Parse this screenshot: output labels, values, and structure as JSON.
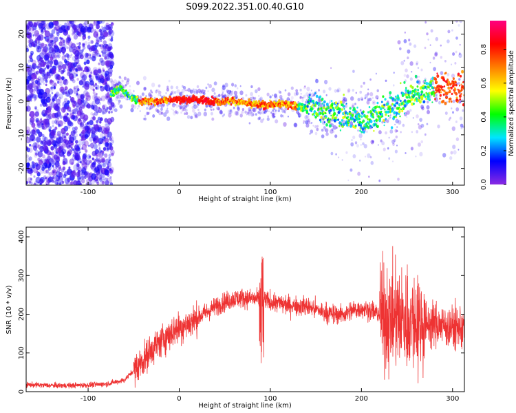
{
  "title": "S099.2022.351.00.40.G10",
  "chart_data": [
    {
      "type": "heatmap",
      "xlabel": "Height of straight line (km)",
      "ylabel": "Frequency (Hz)",
      "xlim": [
        -168,
        313
      ],
      "ylim": [
        -25,
        24
      ],
      "xticks": [
        -100,
        0,
        100,
        200,
        300
      ],
      "yticks": [
        -20,
        -10,
        0,
        10,
        20
      ],
      "colorbar": {
        "label": "Normalized spectral amplitude",
        "range": [
          0,
          0.97
        ],
        "ticks": [
          0.0,
          0.2,
          0.4,
          0.6,
          0.8
        ],
        "colormap": [
          "#8a2be2",
          "#0000ff",
          "#00e5ff",
          "#00ff00",
          "#ffff00",
          "#ff8000",
          "#ff0000",
          "#ff0080"
        ]
      },
      "ridge": {
        "x": [
          -75,
          -65,
          -55,
          -45,
          -30,
          -10,
          0,
          20,
          40,
          60,
          80,
          100,
          120,
          140,
          160,
          180,
          200,
          220,
          240,
          260,
          280,
          300,
          313
        ],
        "y": [
          2,
          4,
          1.5,
          0,
          0,
          0.5,
          0.5,
          0.5,
          0,
          0,
          -1,
          -1,
          -1,
          -2,
          -3,
          -4,
          -6,
          -4,
          -1,
          3,
          4,
          4,
          4
        ]
      }
    },
    {
      "type": "line",
      "xlabel": "Height of straight line (km)",
      "ylabel": "SNR (10 * v/v)",
      "xlim": [
        -168,
        313
      ],
      "ylim": [
        0,
        425
      ],
      "xticks": [
        -100,
        0,
        100,
        200,
        300
      ],
      "yticks": [
        0,
        100,
        200,
        300,
        400
      ],
      "color": "#ee3333",
      "x": [
        -168,
        -140,
        -120,
        -100,
        -80,
        -60,
        -50,
        -40,
        -30,
        -20,
        -10,
        0,
        10,
        20,
        30,
        40,
        50,
        60,
        70,
        80,
        90,
        100,
        110,
        120,
        130,
        140,
        150,
        160,
        170,
        180,
        190,
        200,
        210,
        220,
        230,
        240,
        250,
        260,
        270,
        280,
        290,
        300,
        313
      ],
      "y": [
        18,
        16,
        16,
        17,
        20,
        30,
        55,
        80,
        110,
        130,
        150,
        165,
        175,
        190,
        205,
        220,
        232,
        240,
        242,
        240,
        238,
        232,
        228,
        224,
        222,
        220,
        212,
        205,
        200,
        200,
        210,
        215,
        210,
        200,
        185,
        190,
        185,
        185,
        175,
        175,
        170,
        165,
        165
      ]
    }
  ]
}
